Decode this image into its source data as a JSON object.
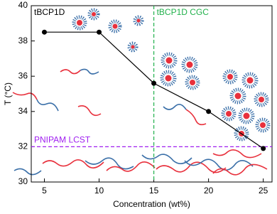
{
  "chart_data": {
    "type": "line",
    "title": "tBCP1D",
    "x_label": "Concentration (wt%)",
    "y_label": "T (°C)",
    "x": [
      5,
      10,
      15,
      20,
      25
    ],
    "series": [
      {
        "color": "#000000",
        "values": [
          38.5,
          38.5,
          35.6,
          34.0,
          31.9
        ]
      }
    ],
    "xlim": [
      3.8,
      25.8
    ],
    "xticks": [
      5,
      10,
      15,
      20,
      25
    ],
    "ylim": [
      30,
      40
    ],
    "yticks": [
      30,
      32,
      34,
      36,
      38,
      40
    ],
    "annotations": [
      {
        "text": "tBCP1D CGC",
        "x": 15,
        "color": "#22b14c"
      },
      {
        "text": "PNIPAM LCST",
        "y": 32,
        "color": "#a020f0"
      }
    ]
  }
}
